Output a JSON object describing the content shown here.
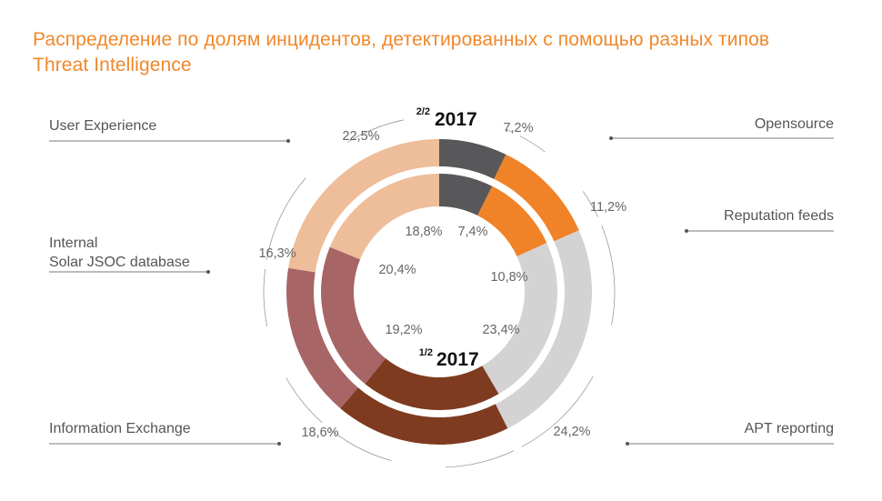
{
  "title": {
    "line1": "Распределение по долям инцидентов, детектированных с помощью разных типов",
    "line2": "Threat Intelligence"
  },
  "chart_data": {
    "type": "pie",
    "title": "Распределение по долям инцидентов, детектированных с помощью разных типов Threat Intelligence",
    "categories": [
      "Opensource",
      "Reputation feeds",
      "APT reporting",
      "Information Exchange",
      "Internal Solar JSOC database",
      "User Experience"
    ],
    "series": [
      {
        "name": "2/2 2017",
        "ring": "outer",
        "period_label": "2/2",
        "year_label": "2017",
        "values": [
          7.2,
          11.2,
          24.2,
          18.6,
          16.3,
          22.5
        ],
        "labels": [
          "7,2%",
          "11,2%",
          "24,2%",
          "18,6%",
          "16,3%",
          "22,5%"
        ]
      },
      {
        "name": "1/2 2017",
        "ring": "inner",
        "period_label": "1/2",
        "year_label": "2017",
        "values": [
          7.4,
          10.8,
          23.4,
          19.2,
          20.4,
          18.8
        ],
        "labels": [
          "7,4%",
          "10,8%",
          "23,4%",
          "19,2%",
          "20,4%",
          "18,8%"
        ]
      }
    ],
    "colors": [
      "#58585a",
      "#f08228",
      "#d3d3d4",
      "#7e3b1f",
      "#a86566",
      "#eebd99"
    ],
    "legend": [
      {
        "label": "User Experience",
        "position": "top-left"
      },
      {
        "label": "Opensource",
        "position": "top-right"
      },
      {
        "label": "Internal",
        "label2": "Solar JSOC database",
        "position": "middle-left"
      },
      {
        "label": "Reputation feeds",
        "position": "middle-right"
      },
      {
        "label": "Information Exchange",
        "position": "bottom-left"
      },
      {
        "label": "APT reporting",
        "position": "bottom-right"
      }
    ]
  }
}
